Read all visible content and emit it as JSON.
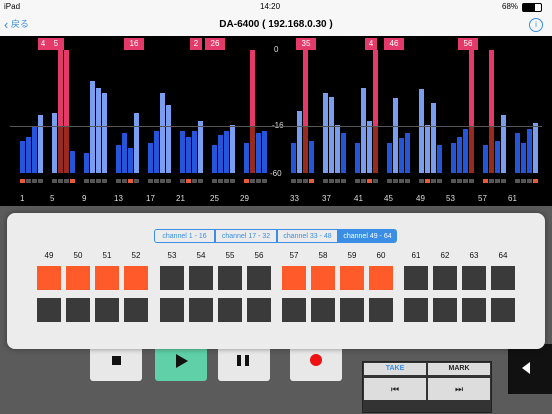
{
  "status": {
    "device": "iPad",
    "time": "14:20",
    "battery": "68%"
  },
  "nav": {
    "back_label": "戻る",
    "title": "DA-6400 ( 192.168.0.30 )"
  },
  "meters": {
    "scale": [
      "0",
      "-16",
      "-60"
    ],
    "channel_labels": [
      "1",
      "5",
      "9",
      "13",
      "17",
      "21",
      "25",
      "29",
      "33",
      "37",
      "41",
      "45",
      "49",
      "53",
      "57",
      "61"
    ],
    "tags": [
      "4",
      "5",
      "16",
      "2",
      "26",
      "35",
      "4",
      "46",
      "56"
    ]
  },
  "panel": {
    "segments": [
      "channel 1 - 16",
      "channel 17 - 32",
      "channel 33 - 48",
      "channel 49 - 64"
    ],
    "selected_segment": 3,
    "channels": [
      "49",
      "50",
      "51",
      "52",
      "53",
      "54",
      "55",
      "56",
      "57",
      "58",
      "59",
      "60",
      "61",
      "62",
      "63",
      "64"
    ],
    "armed": [
      true,
      true,
      true,
      true,
      false,
      false,
      false,
      false,
      true,
      true,
      true,
      true,
      false,
      false,
      false,
      false
    ],
    "colors": {
      "armed": "#ff5a2a",
      "off": "#3a3a3a",
      "accent": "#3a8ee6"
    }
  },
  "transport": {
    "take_label": "TAKE",
    "mark_label": "MARK",
    "rew_label": "⏮",
    "ff_label": "⏭"
  }
}
